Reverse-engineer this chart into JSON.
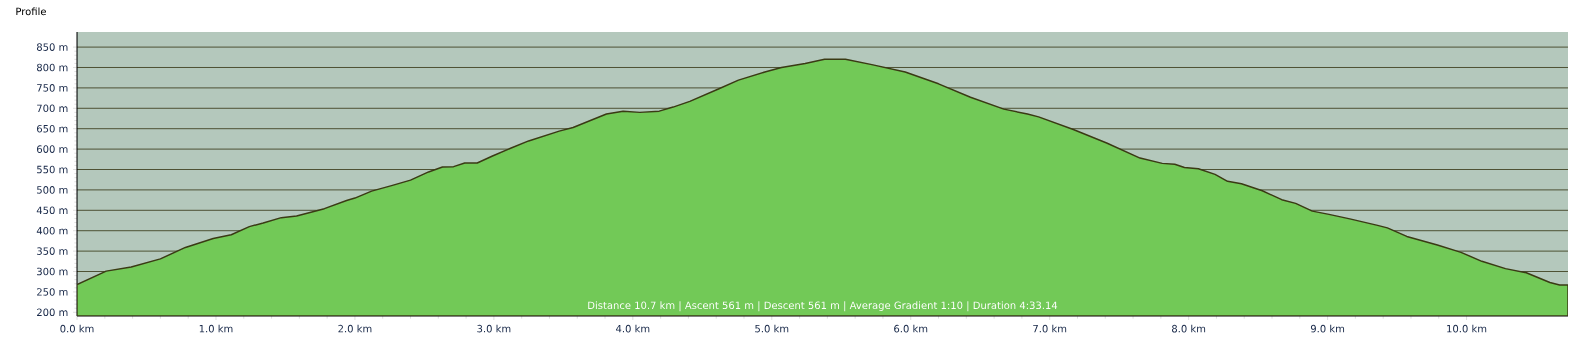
{
  "chart_data": {
    "type": "area",
    "title": "Profile",
    "annotations": [
      "Distance 10.7 km | Ascent 561 m | Descent 561 m | Average Gradient 1:10 | Duration 4:33.14"
    ],
    "x": [
      0,
      0.21,
      0.39,
      0.6,
      0.78,
      0.98,
      1.11,
      1.24,
      1.34,
      1.47,
      1.58,
      1.78,
      1.94,
      2.0,
      2.12,
      2.27,
      2.4,
      2.53,
      2.63,
      2.71,
      2.79,
      2.88,
      2.99,
      3.12,
      3.25,
      3.47,
      3.57,
      3.81,
      3.93,
      4.05,
      4.19,
      4.29,
      4.41,
      4.62,
      4.76,
      4.95,
      5.07,
      5.24,
      5.38,
      5.53,
      5.72,
      5.96,
      6.2,
      6.43,
      6.67,
      6.84,
      6.92,
      7.17,
      7.41,
      7.65,
      7.81,
      7.9,
      7.97,
      8.07,
      8.19,
      8.28,
      8.38,
      8.53,
      8.67,
      8.77,
      8.89,
      9.01,
      9.16,
      9.36,
      9.43,
      9.57,
      9.79,
      9.96,
      10.11,
      10.28,
      10.43,
      10.6,
      10.67,
      10.73
    ],
    "series": [
      {
        "color": "#72c957",
        "values": [
          268,
          301,
          311,
          331,
          359,
          381,
          390,
          410,
          419,
          432,
          436,
          454,
          474,
          480,
          497,
          511,
          524,
          544,
          556,
          557,
          566,
          566,
          583,
          602,
          620,
          644,
          653,
          686,
          693,
          690,
          693,
          703,
          717,
          748,
          769,
          789,
          800,
          810,
          820,
          820,
          807,
          789,
          760,
          727,
          698,
          686,
          679,
          648,
          615,
          578,
          565,
          563,
          555,
          552,
          538,
          521,
          515,
          498,
          476,
          467,
          448,
          440,
          429,
          413,
          407,
          386,
          365,
          347,
          325,
          307,
          297,
          273,
          267,
          267
        ]
      }
    ],
    "xlim": [
      0,
      10.73
    ],
    "ylim": [
      191,
      887
    ],
    "xticks": [
      {
        "value": 0,
        "label": "0.0 km"
      },
      {
        "value": 1,
        "label": "1.0 km"
      },
      {
        "value": 2,
        "label": "2.0 km"
      },
      {
        "value": 3,
        "label": "3.0 km"
      },
      {
        "value": 4,
        "label": "4.0 km"
      },
      {
        "value": 5,
        "label": "5.0 km"
      },
      {
        "value": 6,
        "label": "6.0 km"
      },
      {
        "value": 7,
        "label": "7.0 km"
      },
      {
        "value": 8,
        "label": "8.0 km"
      },
      {
        "value": 9,
        "label": "9.0 km"
      },
      {
        "value": 10,
        "label": "10.0 km"
      }
    ],
    "yticks": [
      {
        "value": 200,
        "label": "200 m"
      },
      {
        "value": 250,
        "label": "250 m"
      },
      {
        "value": 300,
        "label": "300 m"
      },
      {
        "value": 350,
        "label": "350 m"
      },
      {
        "value": 400,
        "label": "400 m"
      },
      {
        "value": 450,
        "label": "450 m"
      },
      {
        "value": 500,
        "label": "500 m"
      },
      {
        "value": 550,
        "label": "550 m"
      },
      {
        "value": 600,
        "label": "600 m"
      },
      {
        "value": 650,
        "label": "650 m"
      },
      {
        "value": 700,
        "label": "700 m"
      },
      {
        "value": 750,
        "label": "750 m"
      },
      {
        "value": 800,
        "label": "800 m"
      },
      {
        "value": 850,
        "label": "850 m"
      }
    ],
    "grid": "y"
  }
}
